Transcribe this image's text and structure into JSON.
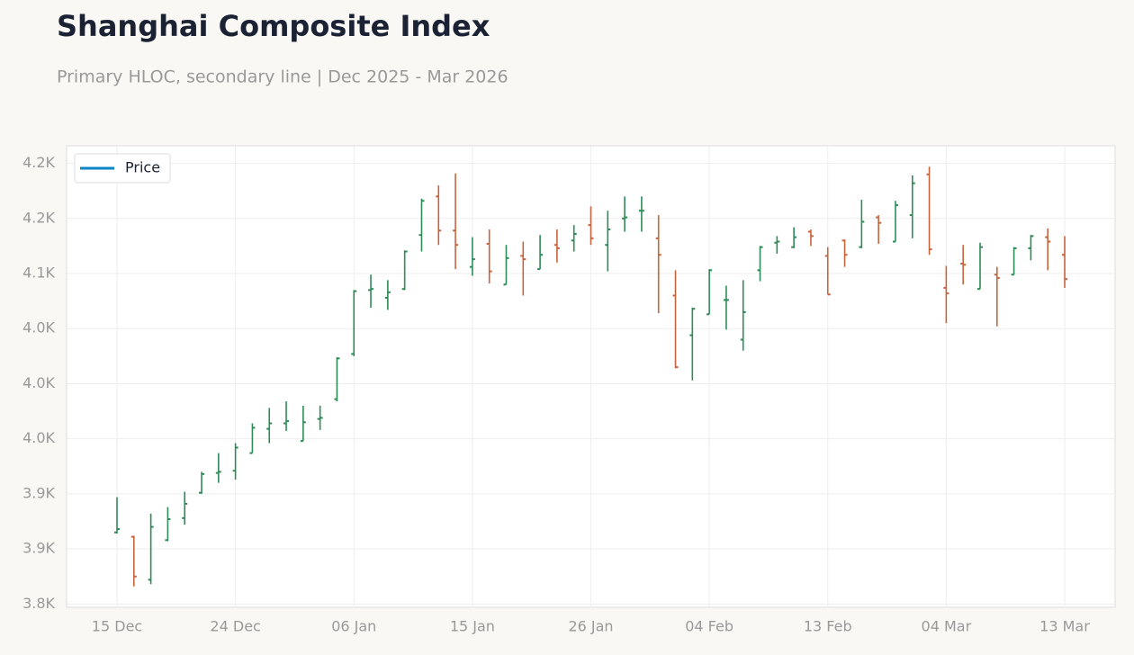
{
  "chart_data": {
    "type": "ohlc",
    "title": "Shanghai Composite Index",
    "subtitle": "Primary HLOC, secondary line | Dec 2025 - Mar 2026",
    "categories": [
      "15 Dec",
      null,
      null,
      null,
      null,
      null,
      null,
      "24 Dec",
      null,
      null,
      null,
      null,
      null,
      null,
      "06 Jan",
      null,
      null,
      null,
      null,
      null,
      null,
      "15 Jan",
      null,
      null,
      null,
      null,
      null,
      null,
      "26 Jan",
      null,
      null,
      null,
      null,
      null,
      null,
      "04 Feb",
      null,
      null,
      null,
      null,
      null,
      null,
      "13 Feb",
      null,
      null,
      null,
      null,
      null,
      null,
      "04 Mar",
      null,
      null,
      null,
      null,
      null,
      null,
      "13 Mar"
    ],
    "series": [
      {
        "name": "Price",
        "color": "#0a84c4",
        "open": [
          3865,
          3861,
          3822,
          3858,
          3878,
          3901,
          3919,
          3921,
          3937,
          3959,
          3964,
          3948,
          3968,
          3986,
          4027,
          4085,
          4078,
          4086,
          4135,
          4170,
          4139,
          4106,
          4127,
          4090,
          4116,
          4104,
          4126,
          4130,
          4144,
          4126,
          4150,
          4157,
          4132,
          4080,
          4044,
          4063,
          4076,
          4040,
          4103,
          4128,
          4124,
          4138,
          4116,
          4130,
          4124,
          4151,
          4129,
          4153,
          4190,
          4087,
          4109,
          4086,
          4099,
          4099,
          4123,
          4133,
          4117
        ],
        "high": [
          3897,
          3862,
          3882,
          3888,
          3902,
          3920,
          3937,
          3946,
          3964,
          3978,
          3984,
          3980,
          3980,
          4024,
          4085,
          4099,
          4094,
          4121,
          4168,
          4180,
          4191,
          4133,
          4140,
          4126,
          4129,
          4135,
          4140,
          4144,
          4161,
          4157,
          4170,
          4170,
          4153,
          4103,
          4069,
          4104,
          4089,
          4094,
          4125,
          4134,
          4142,
          4140,
          4124,
          4131,
          4167,
          4153,
          4166,
          4189,
          4197,
          4107,
          4126,
          4128,
          4106,
          4124,
          4135,
          4141,
          4134
        ],
        "low": [
          3864,
          3816,
          3818,
          3857,
          3872,
          3900,
          3910,
          3913,
          3937,
          3946,
          3957,
          3948,
          3958,
          3984,
          4025,
          4069,
          4067,
          4085,
          4120,
          4126,
          4104,
          4098,
          4091,
          4090,
          4080,
          4104,
          4110,
          4120,
          4126,
          4102,
          4138,
          4138,
          4064,
          4014,
          4003,
          4063,
          4049,
          4030,
          4093,
          4118,
          4123,
          4125,
          4081,
          4106,
          4123,
          4127,
          4129,
          4132,
          4117,
          4055,
          4090,
          4086,
          4052,
          4099,
          4112,
          4103,
          4087
        ],
        "close": [
          3868,
          3825,
          3870,
          3877,
          3891,
          3918,
          3920,
          3942,
          3960,
          3964,
          3966,
          3965,
          3969,
          4023,
          4084,
          4086,
          4083,
          4120,
          4166,
          4139,
          4126,
          4113,
          4102,
          4114,
          4113,
          4117,
          4123,
          4136,
          4132,
          4140,
          4151,
          4157,
          4117,
          4015,
          4068,
          4103,
          4076,
          4065,
          4124,
          4129,
          4133,
          4134,
          4081,
          4117,
          4147,
          4146,
          4162,
          4182,
          4122,
          4082,
          4108,
          4124,
          4096,
          4123,
          4134,
          4129,
          4095
        ]
      }
    ],
    "up_color": "#2e8b57",
    "down_color": "#c8643c",
    "ylim": [
      3797,
      4216
    ],
    "yticks": [
      {
        "value": 3800,
        "label": "3.8K"
      },
      {
        "value": 3850,
        "label": "3.9K"
      },
      {
        "value": 3900,
        "label": "3.9K"
      },
      {
        "value": 3950,
        "label": "4.0K"
      },
      {
        "value": 4000,
        "label": "4.0K"
      },
      {
        "value": 4050,
        "label": "4.0K"
      },
      {
        "value": 4100,
        "label": "4.1K"
      },
      {
        "value": 4150,
        "label": "4.2K"
      },
      {
        "value": 4200,
        "label": "4.2K"
      }
    ],
    "grid": true,
    "legend": "upper left"
  }
}
